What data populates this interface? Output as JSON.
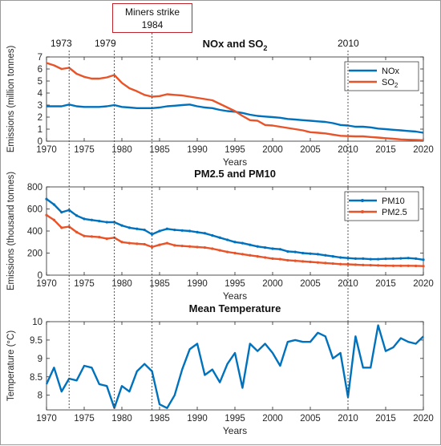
{
  "annotation": {
    "line1": "Miners strike",
    "line2": "1984"
  },
  "event_labels": [
    "1973",
    "1979",
    "2010"
  ],
  "colors": {
    "blue": "#0072bd",
    "orange": "#e8542a",
    "axis": "#262626",
    "grid_vline": "#444444"
  },
  "chart_data": [
    {
      "type": "line",
      "title": "NOx and SO2",
      "title_parts": {
        "main": "NOx and SO",
        "sub": "2"
      },
      "xlabel": "Years",
      "ylabel": "Emissions (million tonnes)",
      "xlim": [
        1970,
        2020
      ],
      "ylim": [
        0,
        7
      ],
      "xticks": [
        1970,
        1975,
        1980,
        1985,
        1990,
        1995,
        2000,
        2005,
        2010,
        2015,
        2020
      ],
      "yticks": [
        0,
        1,
        2,
        3,
        4,
        5,
        6,
        7
      ],
      "legend": "top-right",
      "series": [
        {
          "name": "NOx",
          "label_main": "NOx",
          "label_sub": "",
          "color": "#0072bd",
          "markers": false,
          "x": [
            1970,
            1971,
            1972,
            1973,
            1974,
            1975,
            1976,
            1977,
            1978,
            1979,
            1980,
            1981,
            1982,
            1983,
            1984,
            1985,
            1986,
            1987,
            1988,
            1989,
            1990,
            1991,
            1992,
            1993,
            1994,
            1995,
            1996,
            1997,
            1998,
            1999,
            2000,
            2001,
            2002,
            2003,
            2004,
            2005,
            2006,
            2007,
            2008,
            2009,
            2010,
            2011,
            2012,
            2013,
            2014,
            2015,
            2016,
            2017,
            2018,
            2019,
            2020
          ],
          "values": [
            2.9,
            2.9,
            2.9,
            3.05,
            2.9,
            2.85,
            2.85,
            2.85,
            2.9,
            3.0,
            2.85,
            2.8,
            2.75,
            2.75,
            2.75,
            2.8,
            2.9,
            2.95,
            3.0,
            3.05,
            2.9,
            2.8,
            2.75,
            2.6,
            2.5,
            2.45,
            2.35,
            2.2,
            2.1,
            2.05,
            2.0,
            1.95,
            1.85,
            1.8,
            1.75,
            1.7,
            1.65,
            1.6,
            1.5,
            1.35,
            1.3,
            1.2,
            1.2,
            1.15,
            1.05,
            1.0,
            0.95,
            0.9,
            0.85,
            0.8,
            0.7
          ]
        },
        {
          "name": "SO2",
          "label_main": "SO",
          "label_sub": "2",
          "color": "#e8542a",
          "markers": false,
          "x": [
            1970,
            1971,
            1972,
            1973,
            1974,
            1975,
            1976,
            1977,
            1978,
            1979,
            1980,
            1981,
            1982,
            1983,
            1984,
            1985,
            1986,
            1987,
            1988,
            1989,
            1990,
            1991,
            1992,
            1993,
            1994,
            1995,
            1996,
            1997,
            1998,
            1999,
            2000,
            2001,
            2002,
            2003,
            2004,
            2005,
            2006,
            2007,
            2008,
            2009,
            2010,
            2011,
            2012,
            2013,
            2014,
            2015,
            2016,
            2017,
            2018,
            2019,
            2020
          ],
          "values": [
            6.5,
            6.3,
            6.0,
            6.1,
            5.6,
            5.35,
            5.2,
            5.2,
            5.3,
            5.5,
            4.85,
            4.4,
            4.15,
            3.85,
            3.7,
            3.75,
            3.9,
            3.85,
            3.8,
            3.7,
            3.6,
            3.5,
            3.4,
            3.1,
            2.8,
            2.5,
            2.1,
            1.75,
            1.7,
            1.35,
            1.3,
            1.2,
            1.1,
            1.0,
            0.9,
            0.75,
            0.7,
            0.65,
            0.55,
            0.45,
            0.42,
            0.4,
            0.4,
            0.35,
            0.3,
            0.25,
            0.2,
            0.15,
            0.12,
            0.1,
            0.08
          ]
        }
      ]
    },
    {
      "type": "line",
      "title": "PM2.5 and PM10",
      "xlabel": "Years",
      "ylabel": "Emissions (thousand tonnes)",
      "xlim": [
        1970,
        2020
      ],
      "ylim": [
        0,
        800
      ],
      "xticks": [
        1970,
        1975,
        1980,
        1985,
        1990,
        1995,
        2000,
        2005,
        2010,
        2015,
        2020
      ],
      "yticks": [
        0,
        200,
        400,
        600,
        800
      ],
      "legend": "top-right",
      "series": [
        {
          "name": "PM10",
          "label_main": "PM10",
          "label_sub": "",
          "color": "#0072bd",
          "markers": true,
          "x": [
            1970,
            1971,
            1972,
            1973,
            1974,
            1975,
            1976,
            1977,
            1978,
            1979,
            1980,
            1981,
            1982,
            1983,
            1984,
            1985,
            1986,
            1987,
            1988,
            1989,
            1990,
            1991,
            1992,
            1993,
            1994,
            1995,
            1996,
            1997,
            1998,
            1999,
            2000,
            2001,
            2002,
            2003,
            2004,
            2005,
            2006,
            2007,
            2008,
            2009,
            2010,
            2011,
            2012,
            2013,
            2014,
            2015,
            2016,
            2017,
            2018,
            2019,
            2020
          ],
          "values": [
            690,
            640,
            570,
            590,
            540,
            510,
            500,
            490,
            480,
            480,
            450,
            430,
            420,
            410,
            370,
            400,
            420,
            410,
            405,
            400,
            390,
            380,
            360,
            340,
            320,
            300,
            290,
            275,
            260,
            250,
            240,
            235,
            215,
            210,
            200,
            195,
            190,
            180,
            170,
            160,
            155,
            150,
            150,
            145,
            145,
            148,
            150,
            152,
            155,
            150,
            140
          ]
        },
        {
          "name": "PM2.5",
          "label_main": "PM2.5",
          "label_sub": "",
          "color": "#e8542a",
          "markers": true,
          "x": [
            1970,
            1971,
            1972,
            1973,
            1974,
            1975,
            1976,
            1977,
            1978,
            1979,
            1980,
            1981,
            1982,
            1983,
            1984,
            1985,
            1986,
            1987,
            1988,
            1989,
            1990,
            1991,
            1992,
            1993,
            1994,
            1995,
            1996,
            1997,
            1998,
            1999,
            2000,
            2001,
            2002,
            2003,
            2004,
            2005,
            2006,
            2007,
            2008,
            2009,
            2010,
            2011,
            2012,
            2013,
            2014,
            2015,
            2016,
            2017,
            2018,
            2019,
            2020
          ],
          "values": [
            545,
            500,
            430,
            440,
            390,
            355,
            350,
            345,
            330,
            340,
            300,
            290,
            285,
            280,
            255,
            275,
            290,
            270,
            265,
            260,
            255,
            250,
            240,
            225,
            210,
            200,
            190,
            180,
            170,
            160,
            150,
            145,
            135,
            130,
            125,
            120,
            115,
            110,
            105,
            100,
            98,
            95,
            92,
            90,
            88,
            86,
            85,
            85,
            85,
            84,
            82
          ]
        }
      ]
    },
    {
      "type": "line",
      "title": "Mean Temperature",
      "xlabel": "Years",
      "ylabel": "Temperature (°C)",
      "xlim": [
        1970,
        2020
      ],
      "ylim": [
        7.6,
        10
      ],
      "xticks": [
        1970,
        1975,
        1980,
        1985,
        1990,
        1995,
        2000,
        2005,
        2010,
        2015,
        2020
      ],
      "yticks": [
        8,
        8.5,
        9,
        9.5,
        10
      ],
      "legend": "none",
      "series": [
        {
          "name": "",
          "color": "#0072bd",
          "markers": false,
          "x": [
            1970,
            1971,
            1972,
            1973,
            1974,
            1975,
            1976,
            1977,
            1978,
            1979,
            1980,
            1981,
            1982,
            1983,
            1984,
            1985,
            1986,
            1987,
            1988,
            1989,
            1990,
            1991,
            1992,
            1993,
            1994,
            1995,
            1996,
            1997,
            1998,
            1999,
            2000,
            2001,
            2002,
            2003,
            2004,
            2005,
            2006,
            2007,
            2008,
            2009,
            2010,
            2011,
            2012,
            2013,
            2014,
            2015,
            2016,
            2017,
            2018,
            2019,
            2020
          ],
          "values": [
            8.3,
            8.75,
            8.1,
            8.45,
            8.4,
            8.8,
            8.75,
            8.3,
            8.25,
            7.65,
            8.25,
            8.1,
            8.65,
            8.85,
            8.65,
            7.75,
            7.65,
            8.0,
            8.7,
            9.25,
            9.4,
            8.55,
            8.7,
            8.35,
            8.85,
            9.15,
            8.2,
            9.4,
            9.2,
            9.4,
            9.15,
            8.8,
            9.45,
            9.5,
            9.45,
            9.45,
            9.7,
            9.6,
            9.0,
            9.15,
            7.95,
            9.6,
            8.75,
            8.75,
            9.9,
            9.2,
            9.3,
            9.55,
            9.45,
            9.4,
            9.6
          ]
        }
      ]
    }
  ]
}
